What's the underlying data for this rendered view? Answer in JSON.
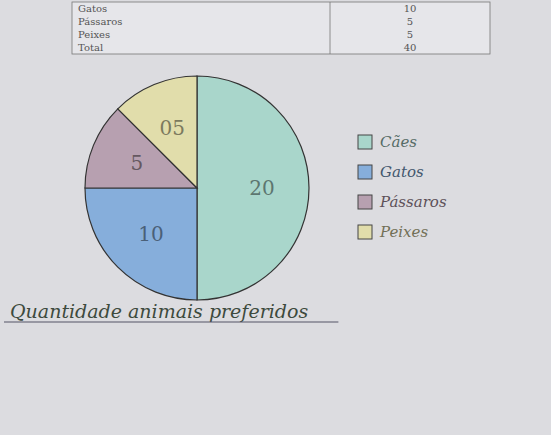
{
  "chart_data": {
    "type": "pie",
    "title": "Quantidade animais preferidos",
    "categories": [
      "Cães",
      "Gatos",
      "Pássaros",
      "Peixes"
    ],
    "values": [
      20,
      10,
      5,
      5
    ],
    "value_labels": [
      "20",
      "10",
      "5",
      "05"
    ],
    "colors": [
      "#a9d6cb",
      "#86aedb",
      "#b7a0b0",
      "#e1ddab"
    ],
    "data_labels": true,
    "legend": "right"
  },
  "table": {
    "rows": [
      [
        "Gatos",
        "10"
      ],
      [
        "Pássaros",
        "5"
      ],
      [
        "Peixes",
        "5"
      ],
      [
        "Total",
        "40"
      ]
    ]
  }
}
